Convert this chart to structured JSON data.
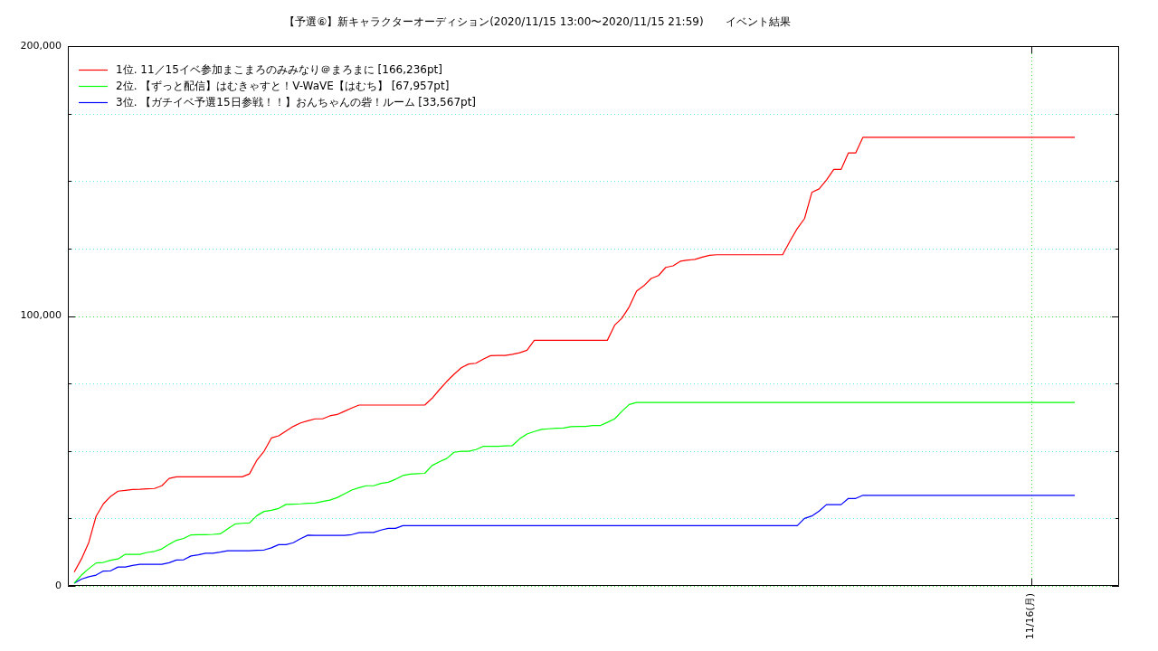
{
  "chart_data": {
    "type": "line",
    "title": "【予選⑥】新キャラクターオーディション(2020/11/15 13:00〜2020/11/15 21:59)　　イベント結果",
    "categories": [
      null,
      null,
      null,
      null,
      null,
      null,
      null,
      null,
      null,
      null,
      null,
      null,
      null,
      null,
      null,
      null,
      null,
      null,
      null,
      null,
      null,
      null,
      null,
      null,
      null,
      null,
      null,
      null,
      null,
      null,
      null,
      null,
      null,
      null,
      null,
      null,
      null,
      null,
      null,
      null,
      null,
      null,
      null,
      null,
      null,
      null,
      null,
      null,
      null,
      null,
      null,
      null,
      null,
      null,
      null,
      null,
      null,
      null,
      null,
      null,
      null,
      null,
      null,
      null,
      null,
      null,
      null,
      null,
      null,
      null,
      null,
      null,
      null,
      null,
      null,
      null,
      null,
      null,
      null,
      null,
      null,
      null,
      null,
      null,
      null,
      null,
      null,
      null,
      null,
      null,
      null,
      null,
      null,
      null,
      null,
      null,
      null,
      null,
      null,
      null,
      null,
      null,
      null,
      null,
      null,
      null,
      null,
      null,
      null,
      null,
      null,
      null,
      null,
      null,
      null,
      null,
      null,
      null,
      null,
      null,
      null,
      null,
      null,
      null,
      null,
      null,
      null,
      null,
      null,
      null,
      null,
      "11/16(月)",
      null,
      null,
      null,
      null,
      null,
      null
    ],
    "ylim": [
      0,
      200000
    ],
    "yticks": [
      {
        "value": 0,
        "label": "0"
      },
      {
        "value": 25000,
        "label": null
      },
      {
        "value": 50000,
        "label": null
      },
      {
        "value": 75000,
        "label": null
      },
      {
        "value": 100000,
        "label": "100,000"
      },
      {
        "value": 125000,
        "label": null
      },
      {
        "value": 150000,
        "label": null
      },
      {
        "value": 175000,
        "label": null
      },
      {
        "value": 200000,
        "label": "200,000"
      }
    ],
    "grid": true,
    "legend": "top left",
    "series": [
      {
        "name": "1位. 11／15イベ参加まこまろのみみなり＠まろまに [166,236pt]",
        "color": "#ff0000",
        "values": [
          5100,
          10000,
          16100,
          25800,
          30400,
          33200,
          35100,
          35400,
          35700,
          35800,
          36000,
          36100,
          37100,
          39800,
          40400,
          40400,
          40400,
          40400,
          40400,
          40400,
          40400,
          40400,
          40400,
          40400,
          41500,
          46500,
          49900,
          54800,
          55600,
          57400,
          59100,
          60400,
          61200,
          61900,
          61900,
          63000,
          63500,
          64700,
          65900,
          67000,
          67000,
          67000,
          67000,
          67000,
          67000,
          67000,
          67000,
          67000,
          67000,
          69500,
          72700,
          75700,
          78400,
          80800,
          82200,
          82500,
          84000,
          85300,
          85400,
          85400,
          85800,
          86400,
          87300,
          91000,
          91000,
          91000,
          91000,
          91000,
          91000,
          91000,
          91000,
          91000,
          91000,
          91000,
          96600,
          99200,
          103400,
          109200,
          111200,
          113900,
          115000,
          118000,
          118600,
          120300,
          120700,
          121000,
          121800,
          122500,
          122700,
          122700,
          122700,
          122700,
          122700,
          122700,
          122700,
          122700,
          122700,
          122700,
          127700,
          132400,
          136100,
          145800,
          147100,
          150400,
          154300,
          154300,
          160400,
          160400,
          166236,
          166236,
          166236,
          166236,
          166236,
          166236,
          166236,
          166236,
          166236,
          166236,
          166236,
          166236,
          166236,
          166236,
          166236,
          166236,
          166236,
          166236,
          166236,
          166236,
          166236,
          166236,
          166236,
          166236,
          166236,
          166236,
          166236,
          166236,
          166236,
          166236
        ]
      },
      {
        "name": "2位. 【ずっと配信】はむきゃすと！V-WaVE【はむち】 [67,957pt]",
        "color": "#00ff00",
        "values": [
          1000,
          4000,
          6400,
          8500,
          8700,
          9500,
          10000,
          11700,
          11700,
          11700,
          12400,
          12800,
          13700,
          15400,
          16900,
          17600,
          18900,
          19000,
          19000,
          19100,
          19300,
          21100,
          22900,
          23200,
          23300,
          26000,
          27600,
          28000,
          28700,
          30200,
          30300,
          30400,
          30600,
          30700,
          31300,
          31800,
          32700,
          34100,
          35500,
          36400,
          37100,
          37100,
          38000,
          38400,
          39500,
          40900,
          41400,
          41600,
          41700,
          44600,
          46000,
          47200,
          49500,
          49900,
          49900,
          50500,
          51700,
          51700,
          51700,
          51900,
          52000,
          54500,
          56300,
          57200,
          58000,
          58200,
          58400,
          58500,
          59000,
          59100,
          59100,
          59400,
          59400,
          60600,
          61900,
          64700,
          67200,
          67957,
          67957,
          67957,
          67957,
          67957,
          67957,
          67957,
          67957,
          67957,
          67957,
          67957,
          67957,
          67957,
          67957,
          67957,
          67957,
          67957,
          67957,
          67957,
          67957,
          67957,
          67957,
          67957,
          67957,
          67957,
          67957,
          67957,
          67957,
          67957,
          67957,
          67957,
          67957,
          67957,
          67957,
          67957,
          67957,
          67957,
          67957,
          67957,
          67957,
          67957,
          67957,
          67957,
          67957,
          67957,
          67957,
          67957,
          67957,
          67957,
          67957,
          67957,
          67957,
          67957,
          67957,
          67957,
          67957,
          67957,
          67957,
          67957,
          67957,
          67957
        ]
      },
      {
        "name": "3位. 【ガチイベ予選15日参戦！！】おんちゃんの砦！ルーム [33,567pt]",
        "color": "#0000ff",
        "values": [
          1000,
          2500,
          3400,
          4000,
          5500,
          5600,
          7000,
          7000,
          7600,
          8000,
          8000,
          8000,
          8000,
          8600,
          9600,
          9700,
          11100,
          11500,
          12100,
          12100,
          12500,
          13000,
          13000,
          13000,
          13000,
          13200,
          13300,
          14100,
          15300,
          15300,
          16000,
          17500,
          18800,
          18700,
          18700,
          18700,
          18700,
          18700,
          19000,
          19700,
          19800,
          19800,
          20700,
          21300,
          21300,
          22300,
          22300,
          22300,
          22300,
          22300,
          22300,
          22300,
          22300,
          22300,
          22300,
          22300,
          22300,
          22300,
          22300,
          22300,
          22300,
          22300,
          22300,
          22300,
          22300,
          22300,
          22300,
          22300,
          22300,
          22300,
          22300,
          22300,
          22300,
          22300,
          22300,
          22300,
          22300,
          22300,
          22300,
          22300,
          22300,
          22300,
          22300,
          22300,
          22300,
          22300,
          22300,
          22300,
          22300,
          22300,
          22300,
          22300,
          22300,
          22300,
          22300,
          22300,
          22300,
          22300,
          22300,
          22300,
          25000,
          25900,
          27700,
          30100,
          30100,
          30100,
          32400,
          32400,
          33567,
          33567,
          33567,
          33567,
          33567,
          33567,
          33567,
          33567,
          33567,
          33567,
          33567,
          33567,
          33567,
          33567,
          33567,
          33567,
          33567,
          33567,
          33567,
          33567,
          33567,
          33567,
          33567,
          33567,
          33567,
          33567,
          33567,
          33567,
          33567,
          33567
        ]
      }
    ]
  }
}
